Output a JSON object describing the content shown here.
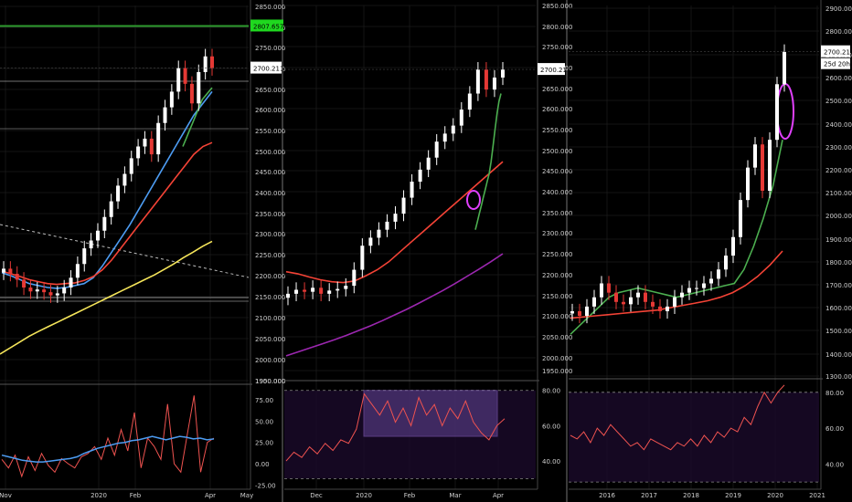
{
  "chart_data": [
    {
      "type": "line",
      "panel": "daily",
      "x_ticks": [
        "Nov",
        "2020",
        "Feb",
        "Apr",
        "May"
      ],
      "y_ticks": [
        "2850.000",
        "2800.000",
        "2750.000",
        "2700.000",
        "2650.000",
        "2600.000",
        "2550.000",
        "2500.000",
        "2450.000",
        "2400.000",
        "2350.000",
        "2300.000",
        "2250.000",
        "2200.000",
        "2150.000",
        "2100.000",
        "2050.000",
        "2000.000",
        "1950.000",
        "1900.000"
      ],
      "ylim": [
        1900,
        2860
      ],
      "price_label": "2700.211",
      "level_label": "2807.657",
      "level_value": 2807.657,
      "last_value": 2700.211,
      "series": [
        {
          "color": "#4d9cf2",
          "values": [
            2178,
            2170,
            2160,
            2150,
            2145,
            2140,
            2138,
            2140,
            2145,
            2150,
            2165,
            2195,
            2230,
            2265,
            2300,
            2340,
            2380,
            2420,
            2460,
            2500,
            2540,
            2580,
            2610,
            2640
          ]
        },
        {
          "color": "#f44336",
          "values": [
            2182,
            2175,
            2168,
            2160,
            2155,
            2150,
            2148,
            2150,
            2152,
            2158,
            2168,
            2185,
            2210,
            2240,
            2270,
            2300,
            2330,
            2360,
            2390,
            2420,
            2450,
            2480,
            2500,
            2510
          ]
        },
        {
          "color": "#f5e55a",
          "values": [
            1970,
            1985,
            2000,
            2015,
            2028,
            2040,
            2052,
            2064,
            2076,
            2088,
            2100,
            2112,
            2124,
            2136,
            2148,
            2160,
            2172,
            2186,
            2200,
            2216,
            2230,
            2245,
            2258
          ]
        },
        {
          "color": "#4caf50",
          "values": [
            2500,
            2520,
            2540,
            2560,
            2580,
            2600,
            2620,
            2630,
            2640,
            2650
          ]
        }
      ],
      "candles": [
        2188,
        2175,
        2160,
        2140,
        2130,
        2135,
        2128,
        2120,
        2125,
        2140,
        2165,
        2200,
        2240,
        2260,
        2285,
        2320,
        2360,
        2400,
        2430,
        2470,
        2500,
        2520,
        2480,
        2560,
        2600,
        2640,
        2700,
        2660,
        2610,
        2690,
        2730,
        2700
      ],
      "oscillator": {
        "y_ticks": [
          "75.00",
          "50.00",
          "25.00",
          "0.00",
          "-25.00"
        ],
        "ylim": [
          -30,
          90
        ],
        "osc_values": [
          5,
          -5,
          10,
          -15,
          8,
          -8,
          12,
          -2,
          -10,
          6,
          0,
          -5,
          8,
          12,
          20,
          5,
          30,
          10,
          40,
          15,
          60,
          -5,
          30,
          20,
          5,
          70,
          0,
          -10,
          35,
          80,
          -10,
          25,
          30
        ],
        "smooth_values": [
          10,
          8,
          6,
          4,
          3,
          2,
          2,
          3,
          4,
          5,
          6,
          8,
          12,
          15,
          18,
          20,
          22,
          24,
          25,
          27,
          28,
          30,
          32,
          30,
          28,
          30,
          32,
          31,
          29,
          30,
          28,
          29
        ]
      }
    },
    {
      "type": "line",
      "panel": "four-hour",
      "x_ticks": [
        "Dec",
        "2020",
        "Feb",
        "Mar",
        "Apr"
      ],
      "y_ticks": [
        "2850.000",
        "2800.000",
        "2750.000",
        "2700.000",
        "2650.000",
        "2600.000",
        "2550.000",
        "2500.000",
        "2450.000",
        "2400.000",
        "2350.000",
        "2300.000",
        "2250.000",
        "2200.000",
        "2150.000",
        "2100.000",
        "2050.000",
        "2000.000",
        "1950.000"
      ],
      "ylim": [
        1930,
        2860
      ],
      "price_label": "2700.211",
      "last_value": 2700.211,
      "series": [
        {
          "color": "#f44336",
          "values": [
            2195,
            2190,
            2182,
            2175,
            2170,
            2168,
            2172,
            2185,
            2200,
            2220,
            2245,
            2270,
            2295,
            2320,
            2345,
            2370,
            2395,
            2420,
            2445,
            2470
          ]
        },
        {
          "color": "#9c27b0",
          "values": [
            1985,
            1995,
            2005,
            2015,
            2025,
            2036,
            2048,
            2060,
            2073,
            2087,
            2101,
            2116,
            2132,
            2148,
            2165,
            2183,
            2201,
            2220,
            2240
          ]
        },
        {
          "color": "#4caf50",
          "values": [
            2300,
            2320,
            2340,
            2360,
            2380,
            2400,
            2420,
            2440,
            2470,
            2510,
            2550,
            2590,
            2620,
            2640
          ]
        }
      ],
      "candles": [
        2140,
        2150,
        2145,
        2155,
        2140,
        2148,
        2152,
        2160,
        2200,
        2260,
        2280,
        2300,
        2320,
        2340,
        2380,
        2420,
        2450,
        2480,
        2520,
        2540,
        2560,
        2600,
        2640,
        2700,
        2650,
        2680,
        2700
      ],
      "oscillator": {
        "y_ticks": [
          "80.00",
          "60.00",
          "40.00"
        ],
        "ylim": [
          24,
          84
        ],
        "osc_values": [
          40,
          45,
          42,
          48,
          44,
          50,
          46,
          52,
          50,
          58,
          78,
          72,
          66,
          74,
          62,
          70,
          60,
          76,
          66,
          72,
          60,
          70,
          64,
          74,
          62,
          56,
          52,
          60,
          64
        ],
        "band_values": [
          80,
          54
        ]
      }
    },
    {
      "type": "line",
      "panel": "weekly",
      "x_ticks": [
        "2016",
        "2017",
        "2018",
        "2019",
        "2020",
        "2021"
      ],
      "y_ticks": [
        "2900.000",
        "2800.000",
        "2700.000",
        "2600.000",
        "2500.000",
        "2400.000",
        "2300.000",
        "2200.000",
        "2100.000",
        "2000.000",
        "1900.000",
        "1800.000",
        "1700.000",
        "1600.000",
        "1500.000",
        "1400.000",
        "1300.000"
      ],
      "ylim": [
        1300,
        2900
      ],
      "price_label": "2700.211",
      "countdown_label": "25d 20h",
      "last_value": 2700.211,
      "series": [
        {
          "color": "#4caf50",
          "values": [
            1480,
            1520,
            1560,
            1600,
            1640,
            1660,
            1670,
            1680,
            1670,
            1660,
            1650,
            1640,
            1650,
            1660,
            1670,
            1680,
            1690,
            1700,
            1760,
            1860,
            1980,
            2120,
            2320
          ]
        },
        {
          "color": "#f44336",
          "values": [
            1550,
            1555,
            1560,
            1565,
            1570,
            1575,
            1580,
            1585,
            1595,
            1605,
            1615,
            1625,
            1640,
            1660,
            1690,
            1730,
            1780,
            1840
          ]
        }
      ],
      "candles": [
        1580,
        1560,
        1600,
        1640,
        1700,
        1660,
        1620,
        1610,
        1640,
        1660,
        1620,
        1600,
        1580,
        1600,
        1640,
        1660,
        1680,
        1680,
        1700,
        1720,
        1760,
        1820,
        1900,
        2060,
        2200,
        2300,
        2100,
        2320,
        2560,
        2700
      ],
      "oscillator": {
        "y_ticks": [
          "80.00",
          "60.00",
          "40.00"
        ],
        "ylim": [
          26,
          86
        ],
        "osc_values": [
          56,
          54,
          58,
          52,
          60,
          56,
          62,
          58,
          54,
          50,
          52,
          48,
          54,
          52,
          50,
          48,
          52,
          50,
          54,
          50,
          56,
          52,
          58,
          55,
          60,
          58,
          66,
          62,
          72,
          80,
          74,
          80,
          84
        ]
      }
    }
  ]
}
